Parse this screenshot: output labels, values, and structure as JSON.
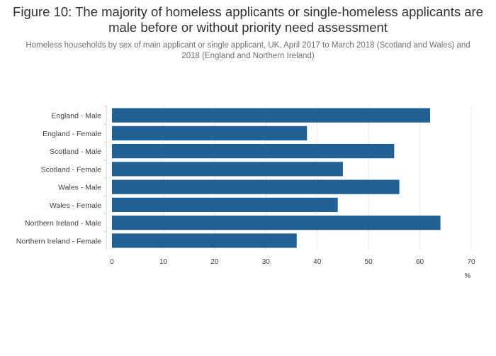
{
  "header": {
    "title": "Figure 10: The majority of homeless applicants or single-homeless applicants are male before or without priority need assessment",
    "subtitle": "Homeless households by sex of main applicant or single applicant, UK, April 2017 to March 2018 (Scotland and Wales) and 2018 (England and Northern Ireland)"
  },
  "chart_data": {
    "type": "bar",
    "orientation": "horizontal",
    "title": "Figure 10: The majority of homeless applicants or single-homeless applicants are male before or without priority need assessment",
    "subtitle": "Homeless households by sex of main applicant or single applicant, UK, April 2017 to March 2018 (Scotland and Wales) and 2018 (England and Northern Ireland)",
    "categories": [
      "England - Male",
      "England - Female",
      "Scotland - Male",
      "Scotland - Female",
      "Wales - Male",
      "Wales - Female",
      "Northern Ireland - Male",
      "Northern Ireland - Female"
    ],
    "values": [
      62,
      38,
      55,
      45,
      56,
      44,
      64,
      36
    ],
    "xlabel": "%",
    "ylabel": "",
    "xlim": [
      0,
      70
    ],
    "xticks": [
      0,
      10,
      20,
      30,
      40,
      50,
      60,
      70
    ],
    "grid": true,
    "bar_color": "#206095"
  }
}
